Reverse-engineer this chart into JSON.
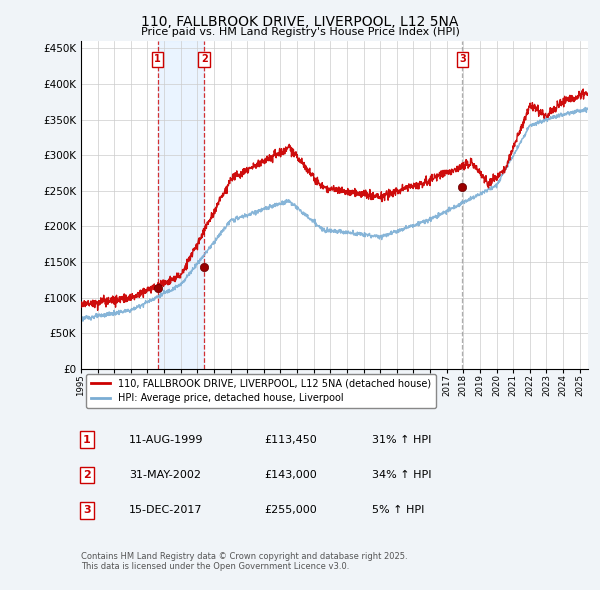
{
  "title": "110, FALLBROOK DRIVE, LIVERPOOL, L12 5NA",
  "subtitle": "Price paid vs. HM Land Registry's House Price Index (HPI)",
  "transactions": [
    {
      "num": 1,
      "date_label": "11-AUG-1999",
      "date_x": 1999.61,
      "price": 113450,
      "pct": "31% ↑ HPI"
    },
    {
      "num": 2,
      "date_label": "31-MAY-2002",
      "date_x": 2002.41,
      "price": 143000,
      "pct": "34% ↑ HPI"
    },
    {
      "num": 3,
      "date_label": "15-DEC-2017",
      "date_x": 2017.95,
      "price": 255000,
      "pct": "5% ↑ HPI"
    }
  ],
  "legend_entries": [
    "110, FALLBROOK DRIVE, LIVERPOOL, L12 5NA (detached house)",
    "HPI: Average price, detached house, Liverpool"
  ],
  "table_rows": [
    [
      "1",
      "11-AUG-1999",
      "£113,450",
      "31% ↑ HPI"
    ],
    [
      "2",
      "31-MAY-2002",
      "£143,000",
      "34% ↑ HPI"
    ],
    [
      "3",
      "15-DEC-2017",
      "£255,000",
      "5% ↑ HPI"
    ]
  ],
  "footer": "Contains HM Land Registry data © Crown copyright and database right 2025.\nThis data is licensed under the Open Government Licence v3.0.",
  "price_line_color": "#cc0000",
  "hpi_line_color": "#7aadd4",
  "vline_color_red": "#cc0000",
  "vline_color_grey": "#999999",
  "marker_color": "#990000",
  "ylim": [
    0,
    460000
  ],
  "xlim_start": 1995.0,
  "xlim_end": 2025.5,
  "yticks": [
    0,
    50000,
    100000,
    150000,
    200000,
    250000,
    300000,
    350000,
    400000,
    450000
  ],
  "bg_color": "#f0f4f8",
  "plot_bg_color": "#ffffff",
  "grid_color": "#cccccc",
  "shade_color": "#ddeeff"
}
